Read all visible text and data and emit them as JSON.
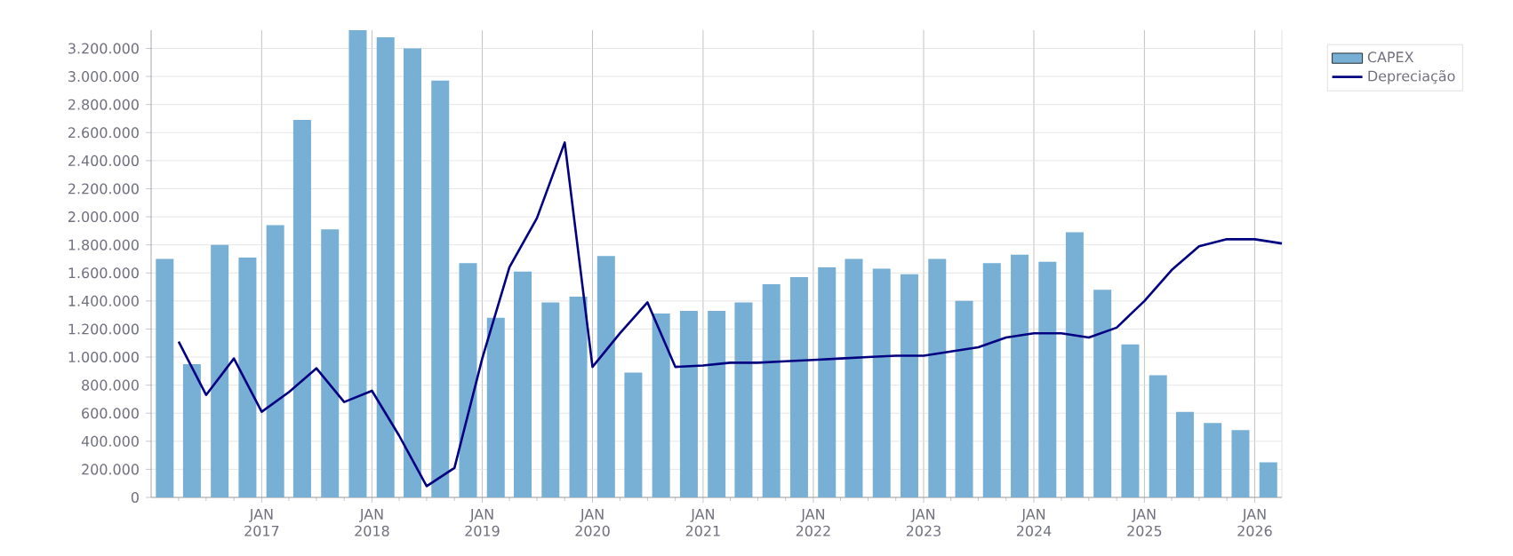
{
  "chart_data": {
    "type": "bar",
    "x": [
      "2016-02-15",
      "2016-05-15",
      "2016-08-15",
      "2016-11-15",
      "2017-02-15",
      "2017-05-15",
      "2017-08-15",
      "2017-11-15",
      "2018-02-15",
      "2018-05-15",
      "2018-08-15",
      "2018-11-15",
      "2019-02-15",
      "2019-05-15",
      "2019-08-15",
      "2019-11-15",
      "2020-02-15",
      "2020-05-15",
      "2020-08-15",
      "2020-11-15",
      "2021-02-15",
      "2021-05-15",
      "2021-08-15",
      "2021-11-15",
      "2022-02-15",
      "2022-05-15",
      "2022-08-15",
      "2022-11-15",
      "2023-02-15",
      "2023-05-15",
      "2023-08-15",
      "2023-11-15",
      "2024-02-15",
      "2024-05-15",
      "2024-08-15",
      "2024-11-15",
      "2025-02-15",
      "2025-05-15",
      "2025-08-15",
      "2025-11-15",
      "2026-02-15"
    ],
    "series": [
      {
        "name": "CAPEX",
        "type": "bar",
        "color": "#77b0d4",
        "values": [
          1700000,
          950000,
          1800000,
          1710000,
          1940000,
          2690000,
          1910000,
          3330000,
          3280000,
          3200000,
          2970000,
          1670000,
          1280000,
          1610000,
          1390000,
          1430000,
          1720000,
          890000,
          1310000,
          1330000,
          1330000,
          1390000,
          1520000,
          1570000,
          1640000,
          1700000,
          1630000,
          1590000,
          1700000,
          1400000,
          1670000,
          1730000,
          1680000,
          1890000,
          1480000,
          1090000,
          870000,
          610000,
          530000,
          480000,
          250000
        ]
      },
      {
        "name": "Depreciação",
        "type": "line",
        "color": "#000080",
        "x": [
          "2016-04",
          "2016-07",
          "2016-10",
          "2017-01",
          "2017-04",
          "2017-07",
          "2017-10",
          "2018-01",
          "2018-04",
          "2018-07",
          "2018-10",
          "2019-01",
          "2019-04",
          "2019-07",
          "2019-10",
          "2020-01",
          "2020-04",
          "2020-07",
          "2020-10",
          "2021-01",
          "2021-04",
          "2021-07",
          "2021-10",
          "2022-01",
          "2022-04",
          "2022-07",
          "2022-10",
          "2023-01",
          "2023-04",
          "2023-07",
          "2023-10",
          "2024-01",
          "2024-04",
          "2024-07",
          "2024-10",
          "2025-01",
          "2025-04",
          "2025-07",
          "2025-10",
          "2026-01",
          "2026-04"
        ],
        "values": [
          1110000,
          730000,
          990000,
          610000,
          750000,
          920000,
          680000,
          760000,
          440000,
          80000,
          210000,
          990000,
          1640000,
          1990000,
          2530000,
          930000,
          1170000,
          1390000,
          930000,
          940000,
          960000,
          960000,
          970000,
          980000,
          990000,
          1000000,
          1010000,
          1010000,
          1040000,
          1070000,
          1140000,
          1170000,
          1170000,
          1140000,
          1210000,
          1400000,
          1620000,
          1790000,
          1840000,
          1840000,
          1810000
        ]
      }
    ],
    "xlim": [
      "2016-01",
      "2026-04"
    ],
    "xticks": [
      {
        "value": "2016-04",
        "label": null
      },
      {
        "value": "2016-07",
        "label": null
      },
      {
        "value": "2016-10",
        "label": null
      },
      {
        "value": "2017-01",
        "label": "JAN 2017"
      },
      {
        "value": "2017-04",
        "label": null
      },
      {
        "value": "2017-07",
        "label": null
      },
      {
        "value": "2017-10",
        "label": null
      },
      {
        "value": "2018-01",
        "label": "JAN 2018"
      },
      {
        "value": "2018-04",
        "label": null
      },
      {
        "value": "2018-07",
        "label": null
      },
      {
        "value": "2018-10",
        "label": null
      },
      {
        "value": "2019-01",
        "label": "JAN 2019"
      },
      {
        "value": "2019-04",
        "label": null
      },
      {
        "value": "2019-07",
        "label": null
      },
      {
        "value": "2019-10",
        "label": null
      },
      {
        "value": "2020-01",
        "label": "JAN 2020"
      },
      {
        "value": "2020-04",
        "label": null
      },
      {
        "value": "2020-07",
        "label": null
      },
      {
        "value": "2020-10",
        "label": null
      },
      {
        "value": "2021-01",
        "label": "JAN 2021"
      },
      {
        "value": "2021-04",
        "label": null
      },
      {
        "value": "2021-07",
        "label": null
      },
      {
        "value": "2021-10",
        "label": null
      },
      {
        "value": "2022-01",
        "label": "JAN 2022"
      },
      {
        "value": "2022-04",
        "label": null
      },
      {
        "value": "2022-07",
        "label": null
      },
      {
        "value": "2022-10",
        "label": null
      },
      {
        "value": "2023-01",
        "label": "JAN 2023"
      },
      {
        "value": "2023-04",
        "label": null
      },
      {
        "value": "2023-07",
        "label": null
      },
      {
        "value": "2023-10",
        "label": null
      },
      {
        "value": "2024-01",
        "label": "JAN 2024"
      },
      {
        "value": "2024-04",
        "label": null
      },
      {
        "value": "2024-07",
        "label": null
      },
      {
        "value": "2024-10",
        "label": null
      },
      {
        "value": "2025-01",
        "label": "JAN 2025"
      },
      {
        "value": "2025-04",
        "label": null
      },
      {
        "value": "2025-07",
        "label": null
      },
      {
        "value": "2025-10",
        "label": null
      },
      {
        "value": "2026-01",
        "label": "JAN 2026"
      }
    ],
    "ylim": [
      0,
      3330000
    ],
    "yticks": [
      0,
      {
        "value": 200000,
        "label": "200.000"
      },
      {
        "value": 400000,
        "label": "400.000"
      },
      {
        "value": 600000,
        "label": "600.000"
      },
      {
        "value": 800000,
        "label": "800.000"
      },
      {
        "value": 1000000,
        "label": "1.000.000"
      },
      {
        "value": 1200000,
        "label": "1.200.000"
      },
      {
        "value": 1400000,
        "label": "1.400.000"
      },
      {
        "value": 1600000,
        "label": "1.600.000"
      },
      {
        "value": 1800000,
        "label": "1.800.000"
      },
      {
        "value": 2000000,
        "label": "2.000.000"
      },
      {
        "value": 2200000,
        "label": "2.200.000"
      },
      {
        "value": 2400000,
        "label": "2.400.000"
      },
      {
        "value": 2600000,
        "label": "2.600.000"
      },
      {
        "value": 2800000,
        "label": "2.800.000"
      },
      {
        "value": 3000000,
        "label": "3.000.000"
      },
      {
        "value": 3200000,
        "label": "3.200.000"
      }
    ],
    "grid": true,
    "legend": "top right",
    "marker": "none",
    "line_style": "solid"
  }
}
